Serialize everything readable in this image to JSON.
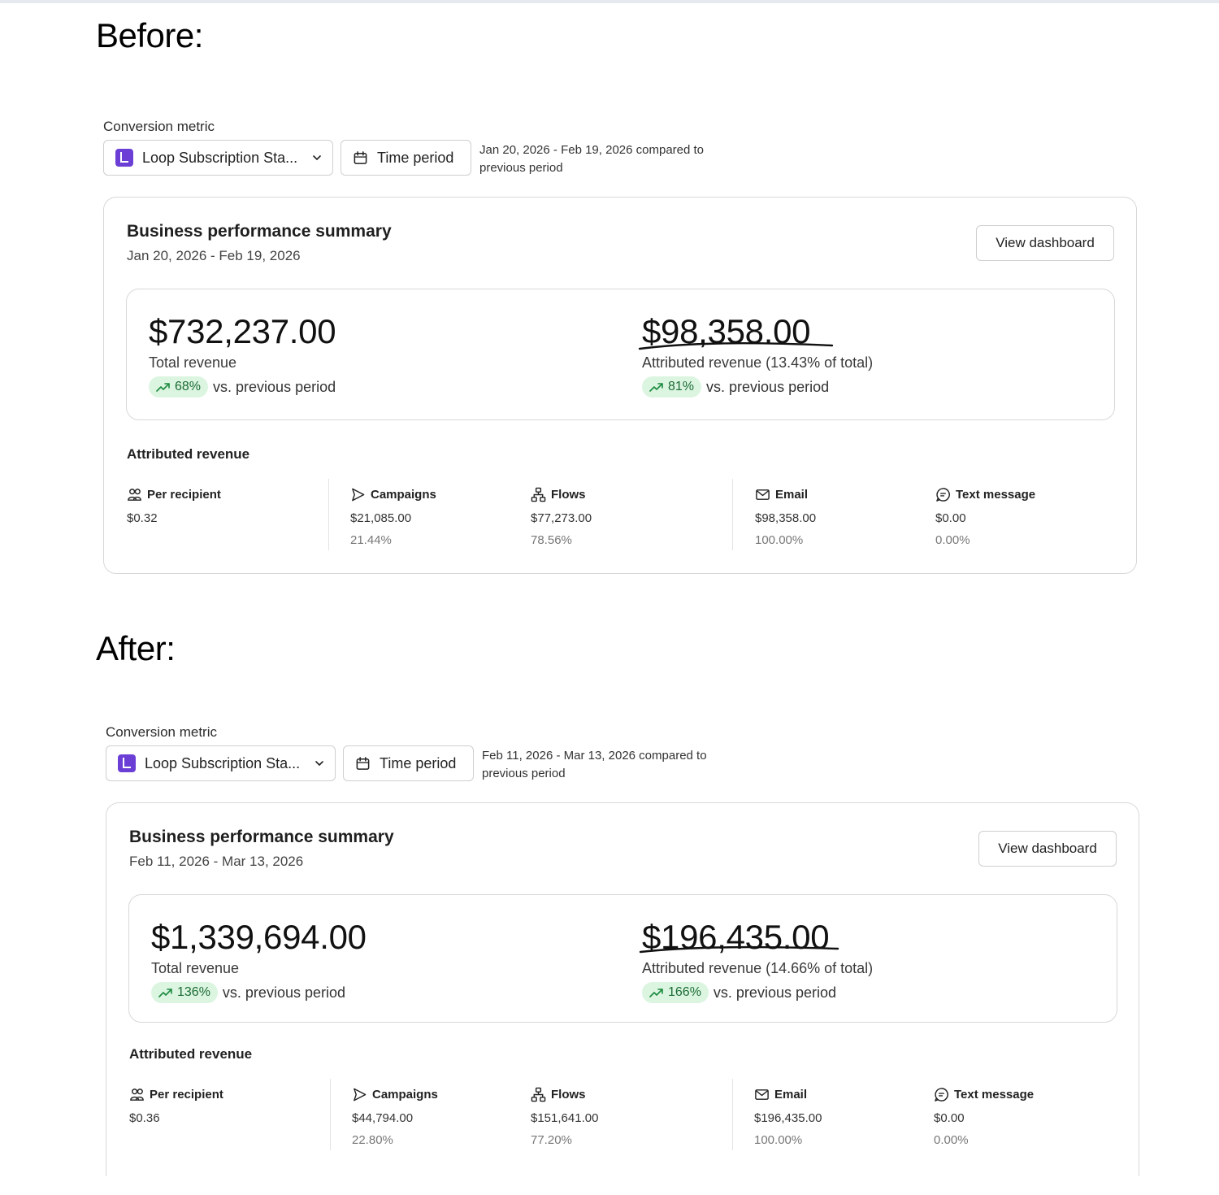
{
  "headings": {
    "before": "Before:",
    "after": "After:"
  },
  "before": {
    "conversion_label": "Conversion metric",
    "metric_select": "Loop Subscription Sta...",
    "time_period": "Time period",
    "date_note": "Jan 20, 2026 - Feb 19, 2026 compared to previous period",
    "card": {
      "title": "Business performance summary",
      "range": "Jan 20, 2026 - Feb 19, 2026",
      "view_button": "View dashboard",
      "total_value": "$732,237.00",
      "total_label": "Total revenue",
      "total_change": "68%",
      "total_suffix": "vs. previous period",
      "attr_value": "$98,358.00",
      "attr_label": "Attributed revenue (13.43% of total)",
      "attr_change": "81%",
      "attr_suffix": "vs. previous period",
      "attr_section_title": "Attributed revenue",
      "columns": [
        {
          "label": "Per recipient",
          "icon": "people-icon",
          "value": "$0.32",
          "pct": ""
        },
        {
          "label": "Campaigns",
          "icon": "send-icon",
          "value": "$21,085.00",
          "pct": "21.44%"
        },
        {
          "label": "Flows",
          "icon": "flow-icon",
          "value": "$77,273.00",
          "pct": "78.56%"
        },
        {
          "label": "Email",
          "icon": "mail-icon",
          "value": "$98,358.00",
          "pct": "100.00%"
        },
        {
          "label": "Text message",
          "icon": "message-icon",
          "value": "$0.00",
          "pct": "0.00%"
        }
      ]
    }
  },
  "after": {
    "conversion_label": "Conversion metric",
    "metric_select": "Loop Subscription Sta...",
    "time_period": "Time period",
    "date_note": "Feb 11, 2026 - Mar 13, 2026 compared to previous period",
    "card": {
      "title": "Business performance summary",
      "range": "Feb 11, 2026 - Mar 13, 2026",
      "view_button": "View dashboard",
      "total_value": "$1,339,694.00",
      "total_label": "Total revenue",
      "total_change": "136%",
      "total_suffix": "vs. previous period",
      "attr_value": "$196,435.00",
      "attr_label": "Attributed revenue (14.66% of total)",
      "attr_change": "166%",
      "attr_suffix": "vs. previous period",
      "attr_section_title": "Attributed revenue",
      "columns": [
        {
          "label": "Per recipient",
          "icon": "people-icon",
          "value": "$0.36",
          "pct": ""
        },
        {
          "label": "Campaigns",
          "icon": "send-icon",
          "value": "$44,794.00",
          "pct": "22.80%"
        },
        {
          "label": "Flows",
          "icon": "flow-icon",
          "value": "$151,641.00",
          "pct": "77.20%"
        },
        {
          "label": "Email",
          "icon": "mail-icon",
          "value": "$196,435.00",
          "pct": "100.00%"
        },
        {
          "label": "Text message",
          "icon": "message-icon",
          "value": "$0.00",
          "pct": "0.00%"
        }
      ]
    }
  },
  "colors": {
    "accent_logo": "#6b3fd6",
    "pill_bg": "#dbf5e1",
    "pill_text": "#1c6b34"
  }
}
